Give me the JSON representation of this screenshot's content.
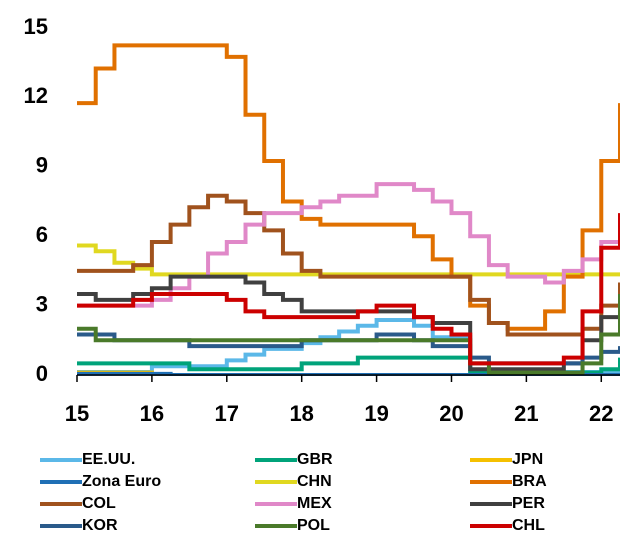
{
  "chart_data": {
    "type": "line",
    "step": true,
    "x": [
      15,
      15.25,
      15.5,
      15.75,
      16,
      16.25,
      16.5,
      16.75,
      17,
      17.25,
      17.5,
      17.75,
      18,
      18.25,
      18.5,
      18.75,
      19,
      19.25,
      19.5,
      19.75,
      20,
      20.25,
      20.5,
      20.75,
      21,
      21.25,
      21.5,
      21.75,
      22,
      22.25
    ],
    "xlim": [
      15,
      22.25
    ],
    "xticks": [
      15,
      16,
      17,
      18,
      19,
      20,
      21,
      22
    ],
    "ylim": [
      0,
      15
    ],
    "yticks": [
      0,
      3,
      6,
      9,
      12,
      15
    ],
    "series": [
      {
        "name": "EE.UU.",
        "color": "#5bb8e8",
        "values": [
          0.13,
          0.13,
          0.13,
          0.13,
          0.38,
          0.38,
          0.38,
          0.38,
          0.63,
          0.88,
          1.13,
          1.13,
          1.38,
          1.63,
          1.88,
          2.13,
          2.38,
          2.38,
          2.13,
          1.63,
          1.63,
          0.13,
          0.13,
          0.13,
          0.13,
          0.13,
          0.13,
          0.13,
          0.13,
          0.38
        ]
      },
      {
        "name": "GBR",
        "color": "#00a37a",
        "values": [
          0.5,
          0.5,
          0.5,
          0.5,
          0.5,
          0.5,
          0.25,
          0.25,
          0.25,
          0.25,
          0.25,
          0.25,
          0.5,
          0.5,
          0.5,
          0.75,
          0.75,
          0.75,
          0.75,
          0.75,
          0.75,
          0.1,
          0.1,
          0.1,
          0.1,
          0.1,
          0.1,
          0.1,
          0.25,
          0.75
        ]
      },
      {
        "name": "JPN",
        "color": "#f5c000",
        "values": [
          0.1,
          0.1,
          0.1,
          0.1,
          -0.1,
          -0.1,
          -0.1,
          -0.1,
          -0.1,
          -0.1,
          -0.1,
          -0.1,
          -0.1,
          -0.1,
          -0.1,
          -0.1,
          -0.1,
          -0.1,
          -0.1,
          -0.1,
          -0.1,
          -0.1,
          -0.1,
          -0.1,
          -0.1,
          -0.1,
          -0.1,
          -0.1,
          -0.1,
          -0.1
        ]
      },
      {
        "name": "Zona Euro",
        "color": "#1f6fb5",
        "values": [
          0.05,
          0.05,
          0.05,
          0.05,
          0.05,
          0,
          0,
          0,
          0,
          0,
          0,
          0,
          0,
          0,
          0,
          0,
          0,
          0,
          0,
          0,
          0,
          0,
          0,
          0,
          0,
          0,
          0,
          0,
          0,
          0
        ]
      },
      {
        "name": "CHN",
        "color": "#e0d820",
        "values": [
          5.6,
          5.35,
          4.85,
          4.6,
          4.35,
          4.35,
          4.35,
          4.35,
          4.35,
          4.35,
          4.35,
          4.35,
          4.35,
          4.35,
          4.35,
          4.35,
          4.35,
          4.35,
          4.35,
          4.35,
          4.35,
          4.35,
          4.35,
          4.35,
          4.35,
          4.35,
          4.35,
          4.35,
          4.35,
          4.35
        ]
      },
      {
        "name": "BRA",
        "color": "#e07000",
        "values": [
          11.75,
          13.25,
          14.25,
          14.25,
          14.25,
          14.25,
          14.25,
          14.25,
          13.75,
          11.25,
          9.25,
          7.5,
          6.75,
          6.5,
          6.5,
          6.5,
          6.5,
          6.5,
          6.0,
          5.0,
          4.25,
          3.0,
          2.25,
          2.0,
          2.0,
          2.75,
          4.25,
          6.25,
          9.25,
          11.75
        ]
      },
      {
        "name": "COL",
        "color": "#a0521d",
        "values": [
          4.5,
          4.5,
          4.5,
          4.75,
          5.75,
          6.5,
          7.25,
          7.75,
          7.5,
          7.0,
          6.25,
          5.25,
          4.5,
          4.25,
          4.25,
          4.25,
          4.25,
          4.25,
          4.25,
          4.25,
          4.25,
          3.25,
          2.25,
          1.75,
          1.75,
          1.75,
          1.75,
          2.0,
          3.0,
          4.0
        ]
      },
      {
        "name": "MEX",
        "color": "#e088c8",
        "values": [
          3.0,
          3.0,
          3.0,
          3.0,
          3.25,
          3.75,
          4.25,
          5.25,
          5.75,
          6.5,
          7.0,
          7.0,
          7.25,
          7.5,
          7.75,
          7.75,
          8.25,
          8.25,
          8.0,
          7.5,
          7.0,
          6.0,
          4.75,
          4.25,
          4.25,
          4.0,
          4.5,
          5.0,
          5.75,
          6.0
        ]
      },
      {
        "name": "PER",
        "color": "#404040",
        "values": [
          3.5,
          3.25,
          3.25,
          3.5,
          3.75,
          4.25,
          4.25,
          4.25,
          4.25,
          4.0,
          3.5,
          3.25,
          2.75,
          2.75,
          2.75,
          2.75,
          2.75,
          2.75,
          2.5,
          2.25,
          2.25,
          0.25,
          0.25,
          0.25,
          0.25,
          0.25,
          0.5,
          1.5,
          2.5,
          3.5
        ]
      },
      {
        "name": "KOR",
        "color": "#2a5a8a",
        "values": [
          1.75,
          1.75,
          1.5,
          1.5,
          1.5,
          1.5,
          1.25,
          1.25,
          1.25,
          1.25,
          1.25,
          1.25,
          1.5,
          1.5,
          1.5,
          1.5,
          1.75,
          1.75,
          1.5,
          1.25,
          1.25,
          0.75,
          0.5,
          0.5,
          0.5,
          0.5,
          0.5,
          0.75,
          1.0,
          1.25
        ]
      },
      {
        "name": "POL",
        "color": "#4a7a2a",
        "values": [
          2.0,
          1.5,
          1.5,
          1.5,
          1.5,
          1.5,
          1.5,
          1.5,
          1.5,
          1.5,
          1.5,
          1.5,
          1.5,
          1.5,
          1.5,
          1.5,
          1.5,
          1.5,
          1.5,
          1.5,
          1.5,
          0.5,
          0.1,
          0.1,
          0.1,
          0.1,
          0.1,
          0.5,
          1.75,
          3.5
        ]
      },
      {
        "name": "CHL",
        "color": "#cc0000",
        "values": [
          3.0,
          3.0,
          3.0,
          3.25,
          3.5,
          3.5,
          3.5,
          3.5,
          3.25,
          2.75,
          2.5,
          2.5,
          2.5,
          2.5,
          2.5,
          2.75,
          3.0,
          3.0,
          2.5,
          2.0,
          1.75,
          0.5,
          0.5,
          0.5,
          0.5,
          0.5,
          0.75,
          2.75,
          5.5,
          7.0
        ]
      }
    ]
  }
}
